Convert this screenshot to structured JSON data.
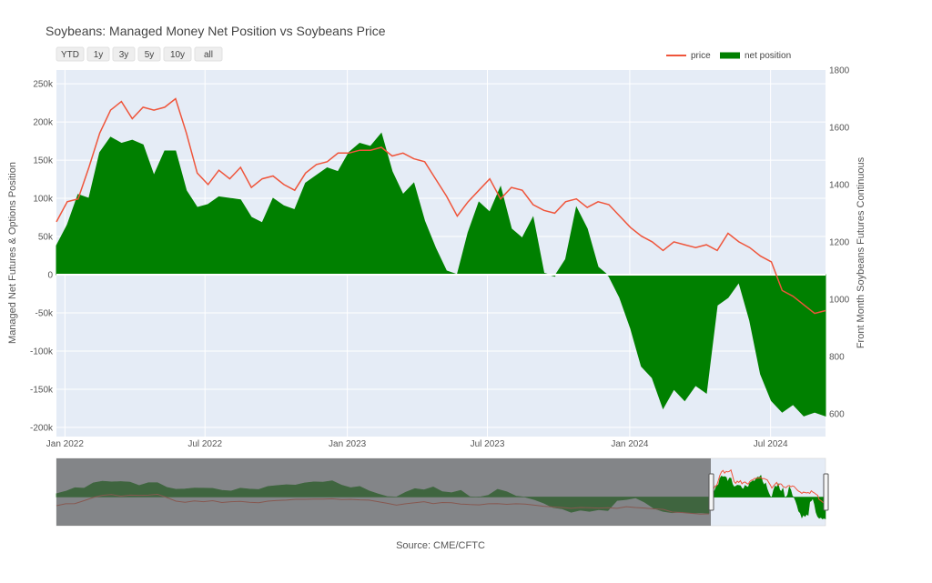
{
  "chart_data": {
    "type": "area",
    "title": "Soybeans: Managed Money Net Position vs Soybeans Price",
    "y_left_label": "Managed Net Futures & Options Position",
    "y_right_label": "Front Month Soybeans Futures Continuous",
    "y_left_ticks": [
      {
        "v": 250000,
        "label": "250k"
      },
      {
        "v": 200000,
        "label": "200k"
      },
      {
        "v": 150000,
        "label": "150k"
      },
      {
        "v": 100000,
        "label": "100k"
      },
      {
        "v": 50000,
        "label": "50k"
      },
      {
        "v": 0,
        "label": "0"
      },
      {
        "v": -50000,
        "label": "-50k"
      },
      {
        "v": -100000,
        "label": "-100k"
      },
      {
        "v": -150000,
        "label": "-150k"
      },
      {
        "v": -200000,
        "label": "-200k"
      }
    ],
    "y_left_range": [
      -212000,
      268000
    ],
    "y_right_ticks": [
      {
        "v": 1800,
        "label": "1800"
      },
      {
        "v": 1600,
        "label": "1600"
      },
      {
        "v": 1400,
        "label": "1400"
      },
      {
        "v": 1200,
        "label": "1200"
      },
      {
        "v": 1000,
        "label": "1000"
      },
      {
        "v": 800,
        "label": "800"
      },
      {
        "v": 600,
        "label": "600"
      }
    ],
    "y_right_range": [
      520,
      1800
    ],
    "x_range": [
      "2021-12-21",
      "2024-09-10"
    ],
    "x_ticks": [
      {
        "date": "2022-01-01",
        "label": "Jan 2022"
      },
      {
        "date": "2022-07-01",
        "label": "Jul 2022"
      },
      {
        "date": "2023-01-01",
        "label": "Jan 2023"
      },
      {
        "date": "2023-07-01",
        "label": "Jul 2023"
      },
      {
        "date": "2024-01-01",
        "label": "Jan 2024"
      },
      {
        "date": "2024-07-01",
        "label": "Jul 2024"
      }
    ],
    "series": [
      {
        "name": "net position",
        "color": "#008000",
        "x": [
          "2021-12-21",
          "2022-01-04",
          "2022-01-18",
          "2022-02-01",
          "2022-02-15",
          "2022-03-01",
          "2022-03-15",
          "2022-03-29",
          "2022-04-12",
          "2022-04-26",
          "2022-05-10",
          "2022-05-24",
          "2022-06-07",
          "2022-06-21",
          "2022-07-05",
          "2022-07-19",
          "2022-08-02",
          "2022-08-16",
          "2022-08-30",
          "2022-09-13",
          "2022-09-27",
          "2022-10-11",
          "2022-10-25",
          "2022-11-08",
          "2022-11-22",
          "2022-12-06",
          "2022-12-20",
          "2023-01-03",
          "2023-01-17",
          "2023-01-31",
          "2023-02-14",
          "2023-02-28",
          "2023-03-14",
          "2023-03-28",
          "2023-04-11",
          "2023-04-25",
          "2023-05-09",
          "2023-05-23",
          "2023-06-06",
          "2023-06-20",
          "2023-07-04",
          "2023-07-18",
          "2023-08-01",
          "2023-08-15",
          "2023-08-29",
          "2023-09-12",
          "2023-09-26",
          "2023-10-10",
          "2023-10-24",
          "2023-11-07",
          "2023-11-21",
          "2023-12-05",
          "2023-12-19",
          "2024-01-02",
          "2024-01-16",
          "2024-01-30",
          "2024-02-13",
          "2024-02-27",
          "2024-03-12",
          "2024-03-26",
          "2024-04-09",
          "2024-04-23",
          "2024-05-07",
          "2024-05-21",
          "2024-06-04",
          "2024-06-18",
          "2024-07-02",
          "2024-07-16",
          "2024-07-30",
          "2024-08-13",
          "2024-08-27",
          "2024-09-10"
        ],
        "values": [
          38000,
          65000,
          105000,
          100000,
          160000,
          180000,
          172000,
          176000,
          170000,
          130000,
          162000,
          162000,
          110000,
          88000,
          92000,
          102000,
          100000,
          98000,
          75000,
          68000,
          100000,
          90000,
          85000,
          120000,
          130000,
          140000,
          135000,
          160000,
          172000,
          168000,
          185000,
          135000,
          105000,
          120000,
          70000,
          35000,
          5000,
          0,
          55000,
          95000,
          82000,
          115000,
          60000,
          48000,
          75000,
          2000,
          -2000,
          20000,
          88000,
          60000,
          10000,
          -2000,
          -30000,
          -70000,
          -120000,
          -135000,
          -175000,
          -150000,
          -165000,
          -145000,
          -155000,
          -40000,
          -30000,
          -10000,
          -60000,
          -130000,
          -165000,
          -180000,
          -170000,
          -185000,
          -180000,
          -185000
        ]
      },
      {
        "name": "price",
        "color": "#EF553B",
        "x": [
          "2021-12-21",
          "2022-01-04",
          "2022-01-18",
          "2022-02-01",
          "2022-02-15",
          "2022-03-01",
          "2022-03-15",
          "2022-03-29",
          "2022-04-12",
          "2022-04-26",
          "2022-05-10",
          "2022-05-24",
          "2022-06-07",
          "2022-06-21",
          "2022-07-05",
          "2022-07-19",
          "2022-08-02",
          "2022-08-16",
          "2022-08-30",
          "2022-09-13",
          "2022-09-27",
          "2022-10-11",
          "2022-10-25",
          "2022-11-08",
          "2022-11-22",
          "2022-12-06",
          "2022-12-20",
          "2023-01-03",
          "2023-01-17",
          "2023-01-31",
          "2023-02-14",
          "2023-02-28",
          "2023-03-14",
          "2023-03-28",
          "2023-04-11",
          "2023-04-25",
          "2023-05-09",
          "2023-05-23",
          "2023-06-06",
          "2023-06-20",
          "2023-07-04",
          "2023-07-18",
          "2023-08-01",
          "2023-08-15",
          "2023-08-29",
          "2023-09-12",
          "2023-09-26",
          "2023-10-10",
          "2023-10-24",
          "2023-11-07",
          "2023-11-21",
          "2023-12-05",
          "2023-12-19",
          "2024-01-02",
          "2024-01-16",
          "2024-01-30",
          "2024-02-13",
          "2024-02-27",
          "2024-03-12",
          "2024-03-26",
          "2024-04-09",
          "2024-04-23",
          "2024-05-07",
          "2024-05-21",
          "2024-06-04",
          "2024-06-18",
          "2024-07-02",
          "2024-07-16",
          "2024-07-30",
          "2024-08-13",
          "2024-08-27",
          "2024-09-10"
        ],
        "values": [
          1270,
          1340,
          1350,
          1460,
          1580,
          1660,
          1690,
          1630,
          1670,
          1660,
          1670,
          1700,
          1580,
          1440,
          1400,
          1450,
          1420,
          1460,
          1390,
          1420,
          1430,
          1400,
          1380,
          1440,
          1470,
          1480,
          1510,
          1510,
          1520,
          1520,
          1530,
          1500,
          1510,
          1490,
          1480,
          1420,
          1360,
          1290,
          1340,
          1380,
          1420,
          1350,
          1390,
          1380,
          1330,
          1310,
          1300,
          1340,
          1350,
          1320,
          1340,
          1330,
          1290,
          1250,
          1220,
          1200,
          1170,
          1200,
          1190,
          1180,
          1190,
          1170,
          1230,
          1200,
          1180,
          1150,
          1130,
          1030,
          1010,
          980,
          950,
          960
        ]
      }
    ],
    "legend": [
      "price",
      "net position"
    ],
    "legend_placement": "top-right",
    "range_buttons": [
      "YTD",
      "1y",
      "3y",
      "5y",
      "10y",
      "all"
    ],
    "range_slider": {
      "full_range": [
        "2006-06-01",
        "2024-09-10"
      ],
      "selected": [
        "2021-12-21",
        "2024-09-10"
      ]
    },
    "annotations": [
      "Source: CME/CFTC"
    ]
  }
}
